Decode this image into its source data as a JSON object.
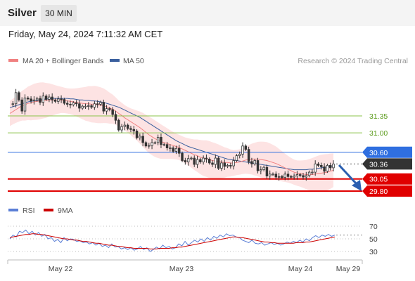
{
  "header": {
    "instrument": "Silver",
    "timeframe": "30 MIN",
    "datetime": "Friday, May 24, 2024 7:11:32 AM CET"
  },
  "legend": {
    "ma20_label": "MA 20 + Bollinger Bands",
    "ma50_label": "MA 50",
    "credit": "Research © 2024 Trading Central"
  },
  "rsi_legend": {
    "rsi_label": "RSI",
    "ma_label": "9MA"
  },
  "colors": {
    "ma20": "#f08080",
    "ma50": "#3a5f9e",
    "bands": "#fde0e0",
    "resistance": "#8bc34a",
    "pivot": "#2f6fe0",
    "support": "#e00000",
    "price": "#333333",
    "rsi": "#5b7fd6",
    "rsi_ma": "#cc0000",
    "arrow": "#2b5fb0"
  },
  "chart_data": [
    {
      "type": "line",
      "title": "Silver",
      "series": [
        {
          "kind": "candlestick",
          "values": [
            31.59,
            31.6,
            31.83,
            31.68,
            31.45,
            31.72,
            31.7,
            31.66,
            31.68,
            31.71,
            31.63,
            31.76,
            31.69,
            31.74,
            31.68,
            31.65,
            31.7,
            31.69,
            31.61,
            31.59,
            31.58,
            31.62,
            31.6,
            31.51,
            31.55,
            31.55,
            31.56,
            31.53,
            31.6,
            31.59,
            31.63,
            31.45,
            31.5,
            31.48,
            31.38,
            31.26,
            31.06,
            31.13,
            31.16,
            31.09,
            31.07,
            31.04,
            30.9,
            30.93,
            30.8,
            30.73,
            30.74,
            30.8,
            30.8,
            30.91,
            30.76,
            30.76,
            30.69,
            30.69,
            30.62,
            30.68,
            30.58,
            30.43,
            30.4,
            30.47,
            30.48,
            30.35,
            30.45,
            30.4,
            30.48,
            30.46,
            30.38,
            30.35,
            30.48,
            30.27,
            30.38,
            30.31,
            30.33,
            30.32,
            30.43,
            30.53,
            30.56,
            30.73,
            30.66,
            30.41,
            30.36,
            30.43,
            30.22,
            30.24,
            30.29,
            30.11,
            30.15,
            30.15,
            30.09,
            30.1,
            30.08,
            30.15,
            30.1,
            30.09,
            30.11,
            30.14,
            30.12,
            30.09,
            30.12,
            30.19,
            30.19,
            30.36,
            30.33,
            30.3,
            30.21,
            30.33,
            30.28,
            30.36
          ]
        },
        {
          "name": "MA 20 + Bollinger Bands",
          "kind": "ma20",
          "values": [
            31.4,
            31.44,
            31.48,
            31.52,
            31.56,
            31.58,
            31.61,
            31.62,
            31.64,
            31.65,
            31.66,
            31.67,
            31.67,
            31.68,
            31.68,
            31.68,
            31.68,
            31.68,
            31.67,
            31.66,
            31.65,
            31.64,
            31.63,
            31.62,
            31.61,
            31.6,
            31.6,
            31.59,
            31.59,
            31.58,
            31.57,
            31.56,
            31.54,
            31.51,
            31.49,
            31.45,
            31.4,
            31.36,
            31.31,
            31.27,
            31.23,
            31.19,
            31.15,
            31.11,
            31.06,
            31.01,
            30.96,
            30.92,
            30.88,
            30.85,
            30.82,
            30.8,
            30.78,
            30.76,
            30.74,
            30.72,
            30.7,
            30.67,
            30.64,
            30.61,
            30.58,
            30.55,
            30.53,
            30.5,
            30.48,
            30.47,
            30.45,
            30.43,
            30.42,
            30.41,
            30.4,
            30.39,
            30.39,
            30.38,
            30.38,
            30.39,
            30.4,
            30.42,
            30.44,
            30.45,
            30.46,
            30.46,
            30.46,
            30.45,
            30.44,
            30.43,
            30.41,
            30.39,
            30.37,
            30.34,
            30.31,
            30.28,
            30.25,
            30.22,
            30.19,
            30.17,
            30.16,
            30.15,
            30.14,
            30.14,
            30.14,
            30.15,
            30.16,
            30.17,
            30.18,
            30.19,
            30.21,
            30.23
          ]
        },
        {
          "name": "MA 50",
          "kind": "ma50",
          "values": [
            31.52,
            31.54,
            31.56,
            31.58,
            31.6,
            31.62,
            31.64,
            31.65,
            31.66,
            31.67,
            31.68,
            31.69,
            31.7,
            31.7,
            31.71,
            31.71,
            31.71,
            31.71,
            31.71,
            31.71,
            31.7,
            31.7,
            31.69,
            31.68,
            31.68,
            31.67,
            31.67,
            31.66,
            31.66,
            31.65,
            31.64,
            31.63,
            31.61,
            31.59,
            31.57,
            31.55,
            31.53,
            31.5,
            31.47,
            31.44,
            31.41,
            31.38,
            31.35,
            31.32,
            31.28,
            31.24,
            31.2,
            31.16,
            31.12,
            31.08,
            31.04,
            31.0,
            30.96,
            30.92,
            30.88,
            30.84,
            30.81,
            30.78,
            30.75,
            30.72,
            30.7,
            30.68,
            30.66,
            30.64,
            30.62,
            30.6,
            30.58,
            30.56,
            30.54,
            30.52,
            30.5,
            30.48,
            30.46,
            30.45,
            30.44,
            30.43,
            30.42,
            30.41,
            30.4,
            30.39,
            30.38,
            30.37,
            30.36,
            30.35,
            30.34,
            30.33,
            30.32,
            30.31,
            30.3,
            30.29,
            30.28,
            30.27,
            30.26,
            30.25,
            30.24,
            30.24,
            30.24,
            30.24,
            30.24,
            30.25,
            30.25,
            30.26,
            30.27,
            30.28,
            30.29,
            30.3,
            30.31,
            30.32
          ]
        }
      ],
      "levels": [
        {
          "value": 31.35,
          "label": "31.35",
          "kind": "resistance"
        },
        {
          "value": 31.0,
          "label": "31.00",
          "kind": "resistance"
        },
        {
          "value": 30.6,
          "label": "30.60",
          "kind": "pivot"
        },
        {
          "value": 30.36,
          "label": "30.36",
          "kind": "last"
        },
        {
          "value": 30.05,
          "label": "30.05",
          "kind": "support"
        },
        {
          "value": 29.8,
          "label": "29.80",
          "kind": "support"
        }
      ],
      "x_ticks": [
        "May 22",
        "May 23",
        "May 24",
        "May 29"
      ],
      "ylim": [
        29.6,
        32.4
      ],
      "grid": false,
      "legend": "top-left"
    },
    {
      "type": "line",
      "title": "RSI",
      "series": [
        {
          "name": "RSI",
          "values": [
            50,
            56,
            53,
            62,
            60,
            64,
            58,
            62,
            56,
            60,
            54,
            57,
            50,
            52,
            46,
            49,
            44,
            52,
            47,
            50,
            49,
            46,
            47,
            44,
            45,
            42,
            44,
            40,
            43,
            38,
            40,
            36,
            42,
            37,
            38,
            34,
            36,
            33,
            36,
            32,
            34,
            38,
            33,
            36,
            30,
            33,
            37,
            34,
            40,
            36,
            38,
            34,
            36,
            42,
            39,
            46,
            40,
            44,
            48,
            45,
            50,
            46,
            52,
            48,
            54,
            51,
            56,
            53,
            58,
            55,
            56,
            53,
            52,
            48,
            46,
            44,
            48,
            43,
            42,
            44,
            40,
            42,
            44,
            41,
            43,
            40,
            42,
            45,
            43,
            46,
            44,
            48,
            45,
            50,
            47,
            52,
            55,
            52,
            56,
            54,
            57,
            54,
            56
          ]
        },
        {
          "name": "9MA",
          "values": [
            52,
            53,
            54,
            55,
            56,
            57,
            57,
            58,
            58,
            57,
            57,
            56,
            55,
            54,
            53,
            52,
            51,
            50,
            50,
            49,
            48,
            48,
            47,
            46,
            46,
            45,
            44,
            43,
            43,
            42,
            41,
            40,
            40,
            39,
            38,
            38,
            37,
            36,
            36,
            35,
            35,
            35,
            35,
            35,
            34,
            34,
            34,
            35,
            35,
            35,
            35,
            36,
            36,
            37,
            37,
            38,
            39,
            40,
            41,
            42,
            43,
            44,
            45,
            46,
            47,
            48,
            49,
            50,
            51,
            52,
            53,
            53,
            52,
            52,
            51,
            50,
            49,
            48,
            47,
            46,
            45,
            45,
            44,
            44,
            43,
            43,
            43,
            43,
            43,
            43,
            44,
            44,
            44,
            45,
            45,
            46,
            47,
            48,
            49,
            50,
            51,
            52,
            53
          ]
        }
      ],
      "y_ticks": [
        70,
        50,
        30
      ],
      "ylim": [
        20,
        80
      ]
    }
  ]
}
